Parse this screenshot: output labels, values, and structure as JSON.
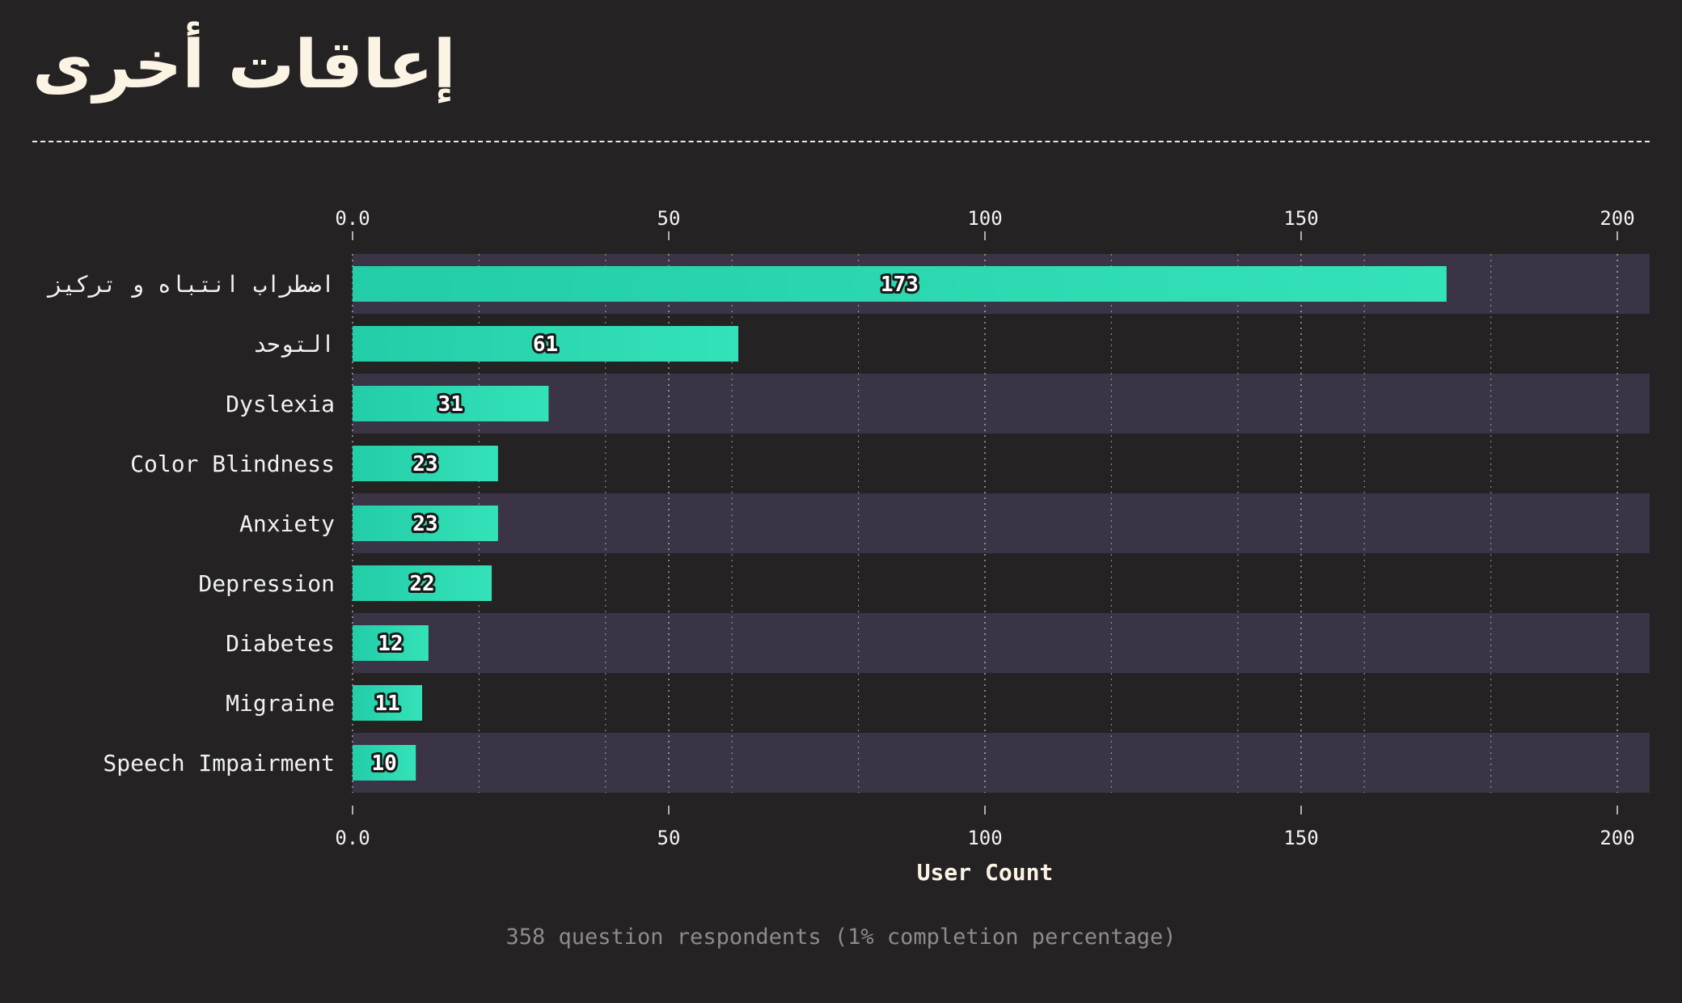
{
  "title": "إعاقات أخرى",
  "note": "358 question respondents (1% completion percentage)",
  "colors": {
    "background": "#252223",
    "band": "#3b3446",
    "bar_start": "#22cda7",
    "bar_end": "#34e2b9",
    "text": "#f2f2f2"
  },
  "chart_data": {
    "type": "bar",
    "orientation": "horizontal",
    "categories": [
      "اضطراب انتباه و تركيز",
      "التوحد",
      "Dyslexia",
      "Color Blindness",
      "Anxiety",
      "Depression",
      "Diabetes",
      "Migraine",
      "Speech Impairment"
    ],
    "values": [
      173,
      61,
      31,
      23,
      23,
      22,
      12,
      11,
      10
    ],
    "data_labels": [
      "173",
      "61",
      "31",
      "23",
      "23",
      "22",
      "12",
      "11",
      "10"
    ],
    "xlabel": "User Count",
    "xlim": [
      0,
      205
    ],
    "ticks": [
      0,
      50,
      100,
      150,
      200
    ],
    "tick_labels": [
      "0.0",
      "50",
      "100",
      "150",
      "200"
    ],
    "minor_gridlines": [
      20,
      40,
      60,
      80,
      120,
      140,
      160,
      180
    ],
    "grid": true,
    "alternating_row_bands": true
  }
}
